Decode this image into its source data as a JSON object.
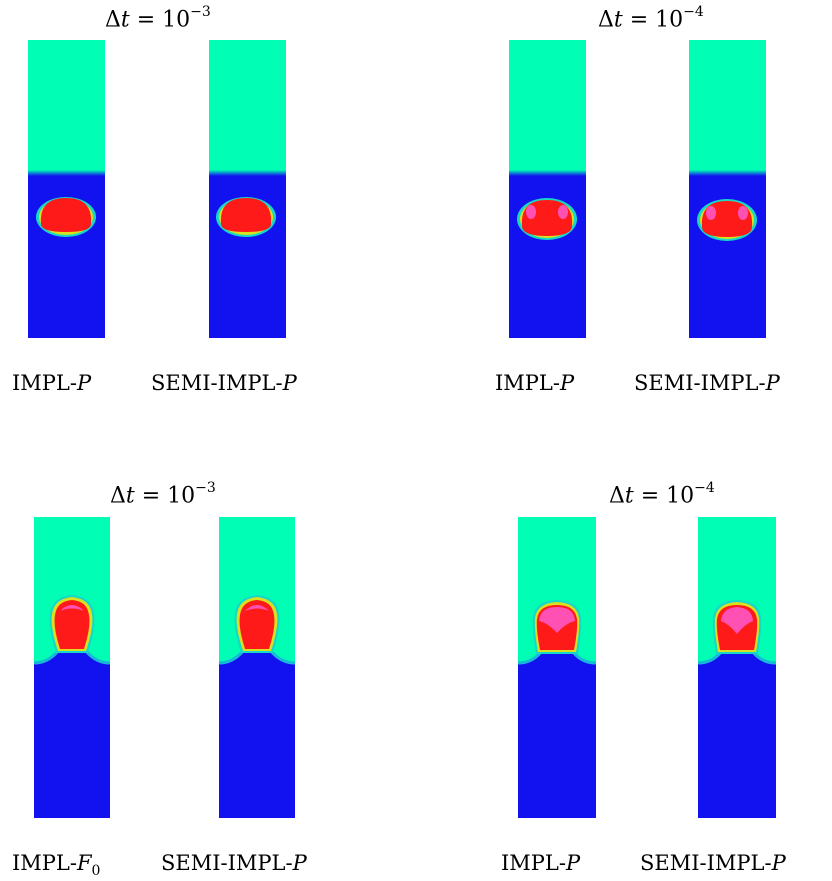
{
  "panels": [
    {
      "title": {
        "delta": "Δ",
        "var": "t",
        "eq": " = 10",
        "exp": "−3"
      },
      "labels": [
        {
          "text": "IMPL-",
          "var": "P",
          "sub": ""
        },
        {
          "text": "SEMI-IMPL-",
          "var": "P",
          "sub": ""
        }
      ]
    },
    {
      "title": {
        "delta": "Δ",
        "var": "t",
        "eq": " = 10",
        "exp": "−4"
      },
      "labels": [
        {
          "text": "IMPL-",
          "var": "P",
          "sub": ""
        },
        {
          "text": "SEMI-IMPL-",
          "var": "P",
          "sub": ""
        }
      ]
    },
    {
      "title": {
        "delta": "Δ",
        "var": "t",
        "eq": " = 10",
        "exp": "−3"
      },
      "labels": [
        {
          "text": "IMPL-",
          "var": "F",
          "sub": "0"
        },
        {
          "text": "SEMI-IMPL-",
          "var": "P",
          "sub": ""
        }
      ]
    },
    {
      "title": {
        "delta": "Δ",
        "var": "t",
        "eq": " = 10",
        "exp": "−4"
      },
      "labels": [
        {
          "text": "IMPL-",
          "var": "P",
          "sub": ""
        },
        {
          "text": "SEMI-IMPL-",
          "var": "P",
          "sub": ""
        }
      ]
    }
  ],
  "colors": {
    "upper_fluid": "#00ffb4",
    "lower_fluid": "#1212f0",
    "bubble": "#ff1a1a",
    "bubble_highlight": "#ff50b4",
    "interface_outer": "#17d8c8",
    "interface_ring": "#d8e020"
  }
}
